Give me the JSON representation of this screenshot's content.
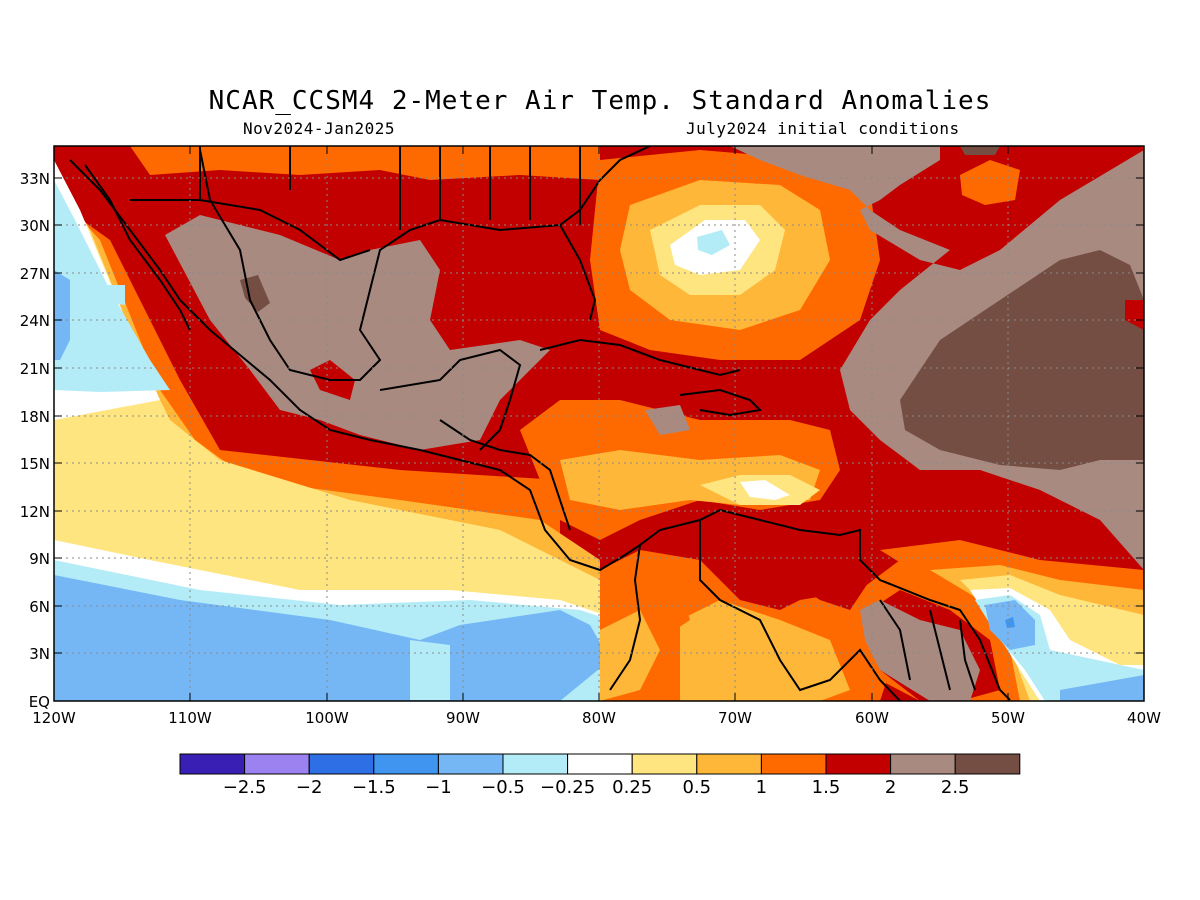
{
  "title": "NCAR_CCSM4 2-Meter Air Temp. Standard Anomalies",
  "subtitle_left": "Nov2024-Jan2025",
  "subtitle_right": "July2024 initial conditions",
  "map": {
    "lon_range": [
      -120,
      -40
    ],
    "lat_range": [
      0,
      35
    ],
    "lat_ticks": [
      "33N",
      "30N",
      "27N",
      "24N",
      "21N",
      "18N",
      "15N",
      "12N",
      "9N",
      "6N",
      "3N",
      "EQ"
    ],
    "lon_ticks": [
      "120W",
      "110W",
      "100W",
      "90W",
      "80W",
      "70W",
      "60W",
      "50W",
      "40W"
    ]
  },
  "colorbar": {
    "colors": [
      "#3a1fb5",
      "#9b82f0",
      "#2f6fe6",
      "#3f95f0",
      "#75b7f5",
      "#b3ecf7",
      "#ffffff",
      "#ffe57f",
      "#ffb73a",
      "#ff6a00",
      "#c20000",
      "#a98a80",
      "#744e43"
    ],
    "labels": [
      "-2.5",
      "-2",
      "-1.5",
      "-1",
      "-0.5",
      "-0.25",
      "0.25",
      "0.5",
      "1",
      "1.5",
      "2",
      "2.5"
    ]
  }
}
